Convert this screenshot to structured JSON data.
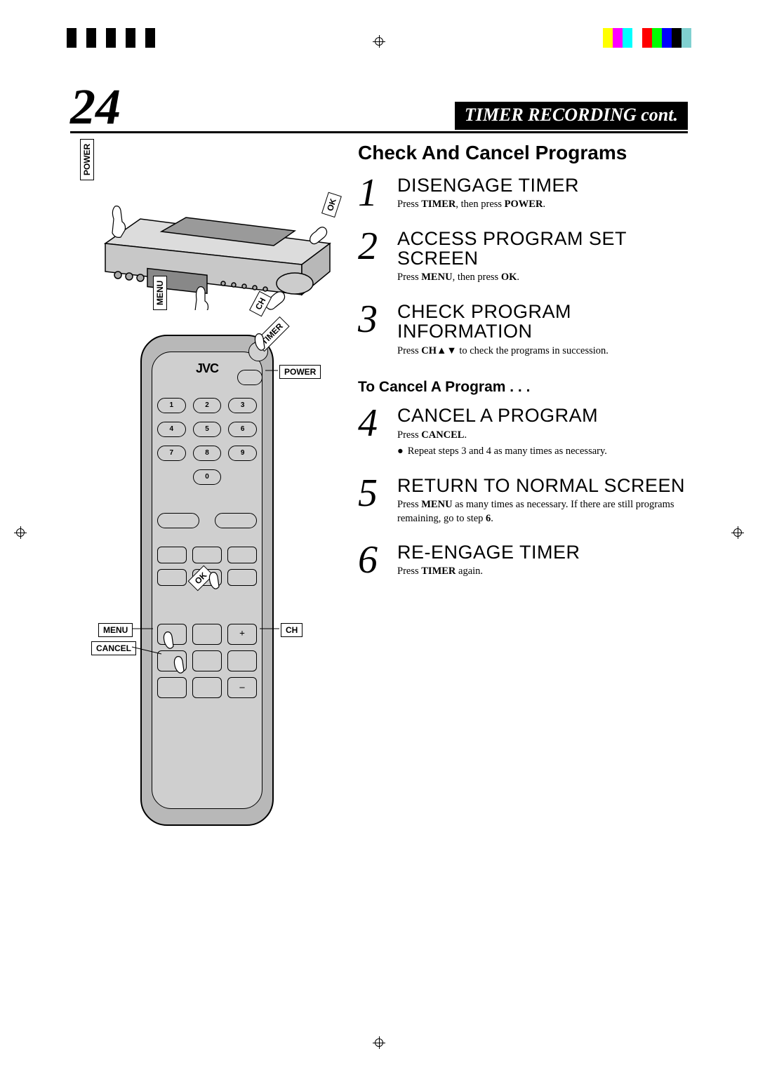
{
  "reg_colors_left": [
    "#000000",
    "#ffffff",
    "#000000",
    "#ffffff",
    "#000000",
    "#ffffff",
    "#000000",
    "#ffffff",
    "#000000"
  ],
  "reg_colors_right": [
    "#ffff00",
    "#ff00ff",
    "#00ffff",
    "#ffffff",
    "#ff0000",
    "#00ff00",
    "#0000ff",
    "#000000",
    "#80d0d0"
  ],
  "page_number": "24",
  "banner": "TIMER RECORDING cont.",
  "section_title": "Check And Cancel Programs",
  "sub_heading": "To Cancel A Program . . .",
  "vcr_labels": {
    "power": "POWER",
    "ok": "OK",
    "menu": "MENU",
    "ch": "CH"
  },
  "remote": {
    "brand": "JVC",
    "labels": {
      "timer": "TIMER",
      "power": "POWER",
      "ok": "OK",
      "menu": "MENU",
      "cancel": "CANCEL",
      "ch": "CH"
    },
    "numpad": [
      "1",
      "2",
      "3",
      "4",
      "5",
      "6",
      "7",
      "8",
      "9",
      "0"
    ]
  },
  "steps": [
    {
      "num": "1",
      "heading": "DISENGAGE TIMER",
      "body": "Press <b>TIMER</b>, then press <b>POWER</b>."
    },
    {
      "num": "2",
      "heading": "ACCESS PROGRAM SET SCREEN",
      "body": "Press <b>MENU</b>, then press <b>OK</b>."
    },
    {
      "num": "3",
      "heading": "CHECK PROGRAM INFORMATION",
      "body": "Press <b>CH</b>▲▼ to check the programs in succession."
    }
  ],
  "steps2": [
    {
      "num": "4",
      "heading": "CANCEL A PROGRAM",
      "body": "Press <b>CANCEL</b>.",
      "bullet": "Repeat steps 3 and 4 as many times as necessary."
    },
    {
      "num": "5",
      "heading": "RETURN TO NORMAL SCREEN",
      "body": "Press <b>MENU</b> as many times as necessary. If there are still programs remaining, go to step <b>6</b>."
    },
    {
      "num": "6",
      "heading": "RE-ENGAGE TIMER",
      "body": "Press <b>TIMER</b> again."
    }
  ]
}
